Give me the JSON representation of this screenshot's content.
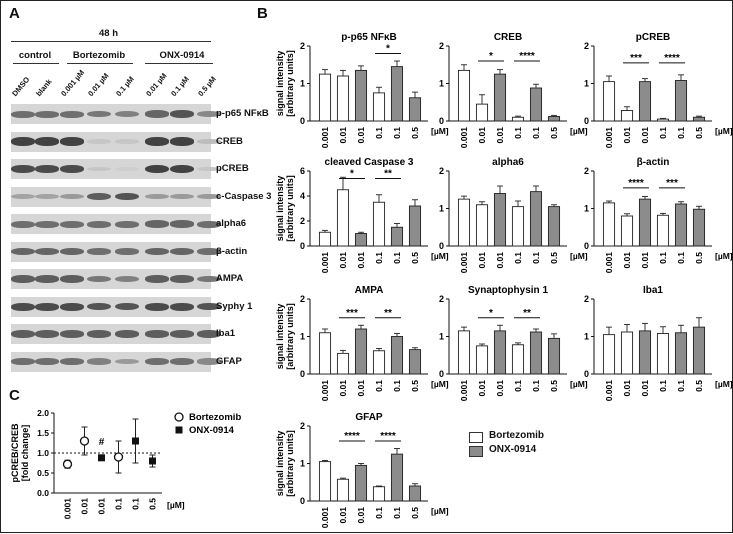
{
  "panels": {
    "a": "A",
    "b": "B",
    "c": "C"
  },
  "western_blot": {
    "time_label": "48 h",
    "groups": [
      {
        "label": "control",
        "lanes": [
          "DMSO",
          "blank"
        ]
      },
      {
        "label": "Bortezomib",
        "lanes": [
          "0.001 µM",
          "0.01 µM",
          "0.1 µM"
        ]
      },
      {
        "label": "ONX-0914",
        "lanes": [
          "0.01 µM",
          "0.1 µM",
          "0.5 µM"
        ]
      }
    ],
    "rows": [
      {
        "label": "p-p65 NFκB",
        "intensity": [
          0.6,
          0.6,
          0.6,
          0.55,
          0.5,
          0.65,
          0.75,
          0.45
        ]
      },
      {
        "label": "CREB",
        "intensity": [
          0.85,
          0.85,
          0.85,
          0.1,
          0.1,
          0.85,
          0.85,
          0.15
        ]
      },
      {
        "label": "pCREB",
        "intensity": [
          0.8,
          0.8,
          0.8,
          0.1,
          0.05,
          0.85,
          0.85,
          0.1
        ]
      },
      {
        "label": "c-Caspase 3",
        "intensity": [
          0.3,
          0.3,
          0.35,
          0.7,
          0.75,
          0.35,
          0.35,
          0.35
        ]
      },
      {
        "label": "alpha6",
        "intensity": [
          0.6,
          0.6,
          0.6,
          0.6,
          0.6,
          0.65,
          0.65,
          0.6
        ]
      },
      {
        "label": "β-actin",
        "intensity": [
          0.65,
          0.65,
          0.65,
          0.6,
          0.6,
          0.65,
          0.65,
          0.6
        ]
      },
      {
        "label": "AMPA",
        "intensity": [
          0.7,
          0.7,
          0.7,
          0.55,
          0.5,
          0.7,
          0.7,
          0.55
        ]
      },
      {
        "label": "Syphy 1",
        "intensity": [
          0.8,
          0.8,
          0.8,
          0.75,
          0.75,
          0.8,
          0.8,
          0.75
        ]
      },
      {
        "label": "Iba1",
        "intensity": [
          0.7,
          0.7,
          0.7,
          0.7,
          0.7,
          0.7,
          0.7,
          0.7
        ]
      },
      {
        "label": "GFAP",
        "intensity": [
          0.6,
          0.6,
          0.6,
          0.5,
          0.35,
          0.6,
          0.6,
          0.45
        ]
      }
    ]
  },
  "legend": {
    "bortezomib": "Bortezomib",
    "onx": "ONX-0914",
    "bortezomib_color": "#ffffff",
    "onx_color": "#8c8c8c"
  },
  "chart_data": [
    {
      "type": "bar",
      "title": "p-p65 NFκB",
      "ylabel": "signal intensity [arbitrary units]",
      "ylim": [
        0,
        2
      ],
      "yticks": [
        0,
        1,
        2
      ],
      "categories": [
        "0.001",
        "0.01",
        "0.01",
        "0.1",
        "0.1",
        "0.5"
      ],
      "unit": "[µM]",
      "values": [
        1.25,
        1.2,
        1.35,
        0.75,
        1.45,
        0.62
      ],
      "errors": [
        0.12,
        0.15,
        0.12,
        0.15,
        0.15,
        0.15
      ],
      "fills": [
        "white",
        "white",
        "gray",
        "white",
        "gray",
        "gray"
      ],
      "significance": [
        {
          "from": 3,
          "to": 4,
          "label": "*",
          "y": 1.8
        }
      ]
    },
    {
      "type": "bar",
      "title": "CREB",
      "ylim": [
        0,
        2
      ],
      "yticks": [
        0,
        1,
        2
      ],
      "categories": [
        "0.001",
        "0.01",
        "0.01",
        "0.1",
        "0.1",
        "0.5"
      ],
      "unit": "[µM]",
      "values": [
        1.35,
        0.45,
        1.25,
        0.1,
        0.88,
        0.12
      ],
      "errors": [
        0.15,
        0.25,
        0.12,
        0.03,
        0.1,
        0.03
      ],
      "fills": [
        "white",
        "white",
        "gray",
        "white",
        "gray",
        "gray"
      ],
      "significance": [
        {
          "from": 1,
          "to": 2,
          "label": "*",
          "y": 1.6
        },
        {
          "from": 3,
          "to": 4,
          "label": "****",
          "y": 1.6
        }
      ]
    },
    {
      "type": "bar",
      "title": "pCREB",
      "ylim": [
        0,
        2
      ],
      "yticks": [
        0,
        1,
        2
      ],
      "categories": [
        "0.001",
        "0.01",
        "0.01",
        "0.1",
        "0.1",
        "0.5"
      ],
      "unit": "[µM]",
      "values": [
        1.05,
        0.28,
        1.05,
        0.05,
        1.08,
        0.1
      ],
      "errors": [
        0.15,
        0.1,
        0.08,
        0.02,
        0.15,
        0.03
      ],
      "fills": [
        "white",
        "white",
        "gray",
        "white",
        "gray",
        "gray"
      ],
      "significance": [
        {
          "from": 1,
          "to": 2,
          "label": "***",
          "y": 1.55
        },
        {
          "from": 3,
          "to": 4,
          "label": "****",
          "y": 1.55
        }
      ]
    },
    {
      "type": "bar",
      "title": "cleaved Caspase 3",
      "ylabel": "signal intensity [arbitrary units]",
      "ylim": [
        0,
        6
      ],
      "yticks": [
        0,
        2,
        4,
        6
      ],
      "categories": [
        "0.001",
        "0.01",
        "0.01",
        "0.1",
        "0.1",
        "0.5"
      ],
      "unit": "[µM]",
      "values": [
        1.1,
        4.5,
        1.0,
        3.5,
        1.5,
        3.2
      ],
      "errors": [
        0.15,
        1.0,
        0.1,
        0.6,
        0.3,
        0.5
      ],
      "fills": [
        "white",
        "white",
        "gray",
        "white",
        "gray",
        "gray"
      ],
      "significance": [
        {
          "from": 1,
          "to": 2,
          "label": "*",
          "y": 5.4
        },
        {
          "from": 3,
          "to": 4,
          "label": "**",
          "y": 5.4
        }
      ]
    },
    {
      "type": "bar",
      "title": "alpha6",
      "ylim": [
        0,
        2
      ],
      "yticks": [
        0,
        1,
        2
      ],
      "categories": [
        "0.001",
        "0.01",
        "0.01",
        "0.1",
        "0.1",
        "0.5"
      ],
      "unit": "[µM]",
      "values": [
        1.25,
        1.1,
        1.4,
        1.05,
        1.45,
        1.05
      ],
      "errors": [
        0.08,
        0.08,
        0.2,
        0.15,
        0.15,
        0.05
      ],
      "fills": [
        "white",
        "white",
        "gray",
        "white",
        "gray",
        "gray"
      ],
      "significance": []
    },
    {
      "type": "bar",
      "title": "β-actin",
      "ylim": [
        0,
        2
      ],
      "yticks": [
        0,
        1,
        2
      ],
      "categories": [
        "0.001",
        "0.01",
        "0.01",
        "0.1",
        "0.1",
        "0.5"
      ],
      "unit": "[µM]",
      "values": [
        1.15,
        0.8,
        1.25,
        0.82,
        1.12,
        0.98
      ],
      "errors": [
        0.05,
        0.06,
        0.07,
        0.05,
        0.06,
        0.08
      ],
      "fills": [
        "white",
        "white",
        "gray",
        "white",
        "gray",
        "gray"
      ],
      "significance": [
        {
          "from": 1,
          "to": 2,
          "label": "****",
          "y": 1.55
        },
        {
          "from": 3,
          "to": 4,
          "label": "***",
          "y": 1.55
        }
      ]
    },
    {
      "type": "bar",
      "title": "AMPA",
      "ylabel": "signal intensity [arbitrary units]",
      "ylim": [
        0,
        2
      ],
      "yticks": [
        0,
        1,
        2
      ],
      "categories": [
        "0.001",
        "0.01",
        "0.01",
        "0.1",
        "0.1",
        "0.5"
      ],
      "unit": "[µM]",
      "values": [
        1.1,
        0.55,
        1.2,
        0.62,
        1.0,
        0.65
      ],
      "errors": [
        0.1,
        0.08,
        0.1,
        0.06,
        0.08,
        0.05
      ],
      "fills": [
        "white",
        "white",
        "gray",
        "white",
        "gray",
        "gray"
      ],
      "significance": [
        {
          "from": 1,
          "to": 2,
          "label": "***",
          "y": 1.5
        },
        {
          "from": 3,
          "to": 4,
          "label": "**",
          "y": 1.5
        }
      ]
    },
    {
      "type": "bar",
      "title": "Synaptophysin 1",
      "ylim": [
        0,
        2
      ],
      "yticks": [
        0,
        1,
        2
      ],
      "categories": [
        "0.001",
        "0.01",
        "0.01",
        "0.1",
        "0.1",
        "0.5"
      ],
      "unit": "[µM]",
      "values": [
        1.15,
        0.75,
        1.15,
        0.78,
        1.12,
        0.95
      ],
      "errors": [
        0.1,
        0.05,
        0.15,
        0.05,
        0.08,
        0.12
      ],
      "fills": [
        "white",
        "white",
        "gray",
        "white",
        "gray",
        "gray"
      ],
      "significance": [
        {
          "from": 1,
          "to": 2,
          "label": "*",
          "y": 1.5
        },
        {
          "from": 3,
          "to": 4,
          "label": "**",
          "y": 1.5
        }
      ]
    },
    {
      "type": "bar",
      "title": "Iba1",
      "ylim": [
        0,
        2
      ],
      "yticks": [
        0,
        1,
        2
      ],
      "categories": [
        "0.001",
        "0.01",
        "0.01",
        "0.1",
        "0.1",
        "0.5"
      ],
      "unit": "[µM]",
      "values": [
        1.05,
        1.12,
        1.15,
        1.08,
        1.1,
        1.25
      ],
      "errors": [
        0.2,
        0.2,
        0.2,
        0.18,
        0.2,
        0.25
      ],
      "fills": [
        "white",
        "white",
        "gray",
        "white",
        "gray",
        "gray"
      ],
      "significance": []
    },
    {
      "type": "bar",
      "title": "GFAP",
      "ylabel": "signal intensity [arbitrary units]",
      "ylim": [
        0,
        2
      ],
      "yticks": [
        0,
        1,
        2
      ],
      "categories": [
        "0.001",
        "0.01",
        "0.01",
        "0.1",
        "0.1",
        "0.5"
      ],
      "unit": "[µM]",
      "values": [
        1.05,
        0.58,
        0.95,
        0.38,
        1.25,
        0.4
      ],
      "errors": [
        0.03,
        0.03,
        0.05,
        0.02,
        0.15,
        0.06
      ],
      "fills": [
        "white",
        "white",
        "gray",
        "white",
        "gray",
        "gray"
      ],
      "significance": [
        {
          "from": 1,
          "to": 2,
          "label": "****",
          "y": 1.6
        },
        {
          "from": 3,
          "to": 4,
          "label": "****",
          "y": 1.6
        }
      ]
    },
    {
      "type": "scatter",
      "title": "",
      "ylabel": "pCREB/CREB [fold change]",
      "ylim": [
        0,
        2.0
      ],
      "yticks": [
        "0.0",
        "0.5",
        "1.0",
        "1.5",
        "2.0"
      ],
      "categories": [
        "0.001",
        "0.01",
        "0.01",
        "0.1",
        "0.1",
        "0.5"
      ],
      "unit": "[µM]",
      "reference_line": 1.0,
      "series": [
        {
          "name": "Bortezomib",
          "marker": "circle",
          "points": [
            {
              "x": 0,
              "y": 0.72,
              "err": 0.1
            },
            {
              "x": 1,
              "y": 1.3,
              "err": 0.35
            },
            {
              "x": 3,
              "y": 0.9,
              "err": 0.4
            }
          ]
        },
        {
          "name": "ONX-0914",
          "marker": "square",
          "points": [
            {
              "x": 2,
              "y": 0.88,
              "err": 0.05
            },
            {
              "x": 4,
              "y": 1.3,
              "err": 0.55
            },
            {
              "x": 5,
              "y": 0.8,
              "err": 0.15
            }
          ]
        }
      ],
      "annotations": [
        {
          "x": 2,
          "y": 1.2,
          "label": "#"
        }
      ]
    }
  ]
}
